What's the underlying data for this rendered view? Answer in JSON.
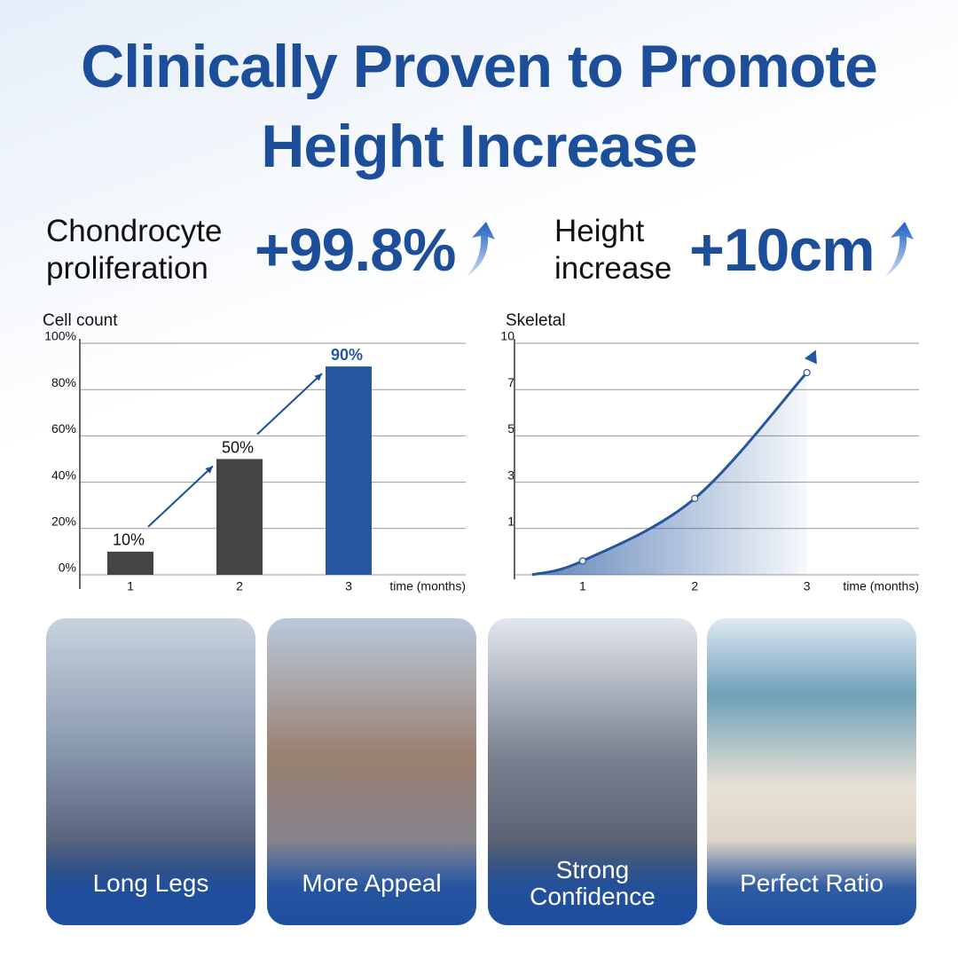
{
  "title": "Clinically Proven to Promote Height Increase",
  "stats": [
    {
      "label": "Chondrocyte proliferation",
      "value": "+99.8%"
    },
    {
      "label": "Height increase",
      "value": "+10cm"
    }
  ],
  "cards": [
    "Long Legs",
    "More Appeal",
    "Strong Confidence",
    "Perfect Ratio"
  ],
  "chart_data": [
    {
      "type": "bar",
      "y_label": "Cell count",
      "x_label": "time (months)",
      "categories": [
        "1",
        "2",
        "3"
      ],
      "values": [
        10,
        50,
        90
      ],
      "value_labels": [
        "10%",
        "50%",
        "90%"
      ],
      "colors": [
        "#444444",
        "#444444",
        "#25579e"
      ],
      "ylim": [
        0,
        100
      ],
      "yticks": [
        {
          "value": 0,
          "label": "0%"
        },
        {
          "value": 20,
          "label": "20%"
        },
        {
          "value": 40,
          "label": "40%"
        },
        {
          "value": 60,
          "label": "60%"
        },
        {
          "value": 80,
          "label": "80%"
        },
        {
          "value": 100,
          "label": "100%"
        }
      ],
      "grid": true
    },
    {
      "type": "line",
      "y_label": "Skeletal",
      "x_label": "time (months)",
      "x": [
        0.55,
        1,
        2,
        3
      ],
      "values": [
        0,
        0.3,
        2.3,
        8.1
      ],
      "color": "#25579e",
      "xlim": [
        0.55,
        4
      ],
      "xticks": [
        1,
        2,
        3
      ],
      "ylim": [
        0,
        10
      ],
      "yticks": [
        1,
        3,
        5,
        7,
        10
      ],
      "grid": true
    }
  ]
}
